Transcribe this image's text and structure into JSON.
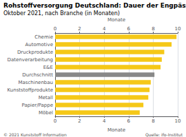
{
  "chart_data": {
    "type": "bar",
    "orientation": "horizontal",
    "title": "Rohstoffversorgung Deutschland: Dauer der Engpässe",
    "subtitle": "Oktober 2021, nach Branche (in Monaten)",
    "categories": [
      "Chemie",
      "Automotive",
      "Druckprodukte",
      "Datenverarbeitung",
      "E&E",
      "Durchschnitt",
      "Maschinenbau",
      "Kunststoffprodukte",
      "Metall",
      "Papier/Pappe",
      "Möbel"
    ],
    "values": [
      9.9,
      9.5,
      8.9,
      8.7,
      8.6,
      8.1,
      7.8,
      7.7,
      7.6,
      7.2,
      6.9
    ],
    "colors": [
      "#f5c818",
      "#f5c818",
      "#f5c818",
      "#f5c818",
      "#f5c818",
      "#888888",
      "#f5c818",
      "#f5c818",
      "#f5c818",
      "#f5c818",
      "#f5c818"
    ],
    "xlabel": "Monate",
    "xlim": [
      0,
      10
    ],
    "xticks": [
      0,
      2,
      4,
      6,
      8,
      10
    ],
    "grid": true,
    "annotations": [
      "© 2021 Kunststoff Information",
      "Quelle: ifo-Institut"
    ]
  }
}
